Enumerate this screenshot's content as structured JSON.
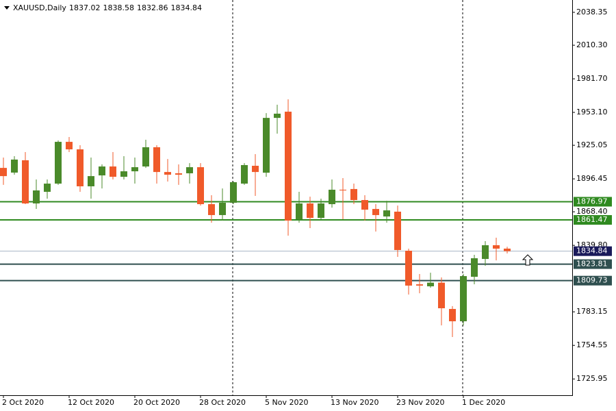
{
  "chart_data": {
    "type": "candlestick",
    "title": "XAUUSD,Daily",
    "categories": [
      "2 Oct 2020",
      null,
      null,
      null,
      null,
      null,
      "12 Oct 2020",
      null,
      null,
      null,
      null,
      null,
      "20 Oct 2020",
      null,
      null,
      null,
      null,
      null,
      "28 Oct 2020",
      null,
      null,
      null,
      null,
      null,
      "5 Nov 2020",
      null,
      null,
      null,
      null,
      null,
      "13 Nov 2020",
      null,
      null,
      null,
      null,
      null,
      "23 Nov 2020",
      null,
      null,
      null,
      null,
      null,
      "1 Dec 2020",
      null,
      null,
      null,
      null
    ],
    "open": [
      1905.8,
      1901.8,
      1912.3,
      1875.5,
      1885.4,
      1892.4,
      1928.0,
      1921.6,
      1890.1,
      1899.4,
      1907.0,
      1898.2,
      1902.9,
      1907.0,
      1923.4,
      1902.3,
      1901.2,
      1901.2,
      1906.4,
      1874.9,
      1865.6,
      1876.1,
      1892.4,
      1907.6,
      1901.7,
      1948.4,
      1953.7,
      1862.1,
      1875.5,
      1863.2,
      1874.9,
      1887.2,
      1887.8,
      1878.4,
      1870.8,
      1864.4,
      1868.5,
      1835.2,
      1806.6,
      1804.9,
      1808.0,
      1785.6,
      1775.1,
      1813.0,
      1828.2,
      1839.9,
      1837.02
    ],
    "high": [
      1914.6,
      1915.8,
      1919.3,
      1895.9,
      1895.9,
      1929.2,
      1932.1,
      1925.1,
      1914.6,
      1908.8,
      1919.3,
      1915.8,
      1914.6,
      1929.8,
      1925.1,
      1913.4,
      1908.8,
      1909.9,
      1909.9,
      1882.5,
      1888.3,
      1894.2,
      1909.9,
      1917.5,
      1952.5,
      1959.6,
      1964.2,
      1885.4,
      1881.3,
      1879.6,
      1895.9,
      1897.1,
      1892.4,
      1882.5,
      1874.9,
      1877.8,
      1873.7,
      1837.0,
      1815.4,
      1816.5,
      1812.5,
      1788.0,
      1815.4,
      1831.7,
      1843.4,
      1846.3,
      1838.58
    ],
    "low": [
      1891.3,
      1900.0,
      1874.9,
      1870.8,
      1879.6,
      1891.3,
      1919.3,
      1885.4,
      1879.6,
      1888.3,
      1895.9,
      1895.9,
      1892.4,
      1905.8,
      1892.4,
      1894.2,
      1891.3,
      1892.4,
      1873.7,
      1859.1,
      1860.9,
      1874.9,
      1891.3,
      1881.9,
      1898.2,
      1935.0,
      1848.1,
      1859.1,
      1854.5,
      1862.1,
      1871.9,
      1862.1,
      1874.9,
      1860.9,
      1851.6,
      1859.1,
      1830.0,
      1797.9,
      1799.0,
      1803.7,
      1771.6,
      1761.7,
      1771.6,
      1806.6,
      1822.4,
      1827.0,
      1832.86
    ],
    "close": [
      1898.8,
      1912.9,
      1875.5,
      1886.6,
      1892.4,
      1928.0,
      1921.6,
      1890.1,
      1898.8,
      1907.0,
      1898.2,
      1902.9,
      1906.4,
      1923.4,
      1902.3,
      1900.0,
      1900.0,
      1906.4,
      1874.9,
      1865.6,
      1876.1,
      1893.6,
      1908.2,
      1902.3,
      1948.4,
      1952.0,
      1860.9,
      1875.5,
      1863.2,
      1875.5,
      1887.2,
      1886.6,
      1878.4,
      1870.2,
      1865.6,
      1869.6,
      1835.8,
      1805.5,
      1805.5,
      1808.0,
      1786.2,
      1775.1,
      1813.6,
      1828.8,
      1839.9,
      1837.0,
      1834.84
    ],
    "up_color": "#4a8a2a",
    "down_color": "#f05a2a",
    "ylim": [
      1712.07,
      2048.86
    ],
    "yticks": [
      1725.95,
      1754.55,
      1783.15,
      {
        "value": 1839.8,
        "label": "1839.80"
      },
      {
        "value": 1868.4,
        "label": "1868.40"
      },
      1896.45,
      1925.05,
      {
        "value": 1953.1,
        "label": "1953.10"
      },
      {
        "value": 1981.7,
        "label": "1981.70"
      },
      {
        "value": 2010.3,
        "label": "2010.30"
      },
      2038.35
    ],
    "levels": [
      {
        "value": 1876.97,
        "color": "#2f8a20"
      },
      {
        "value": 1861.47,
        "color": "#2f8a20"
      },
      {
        "value": 1823.81,
        "color": "#2f4f4f"
      },
      {
        "value": 1809.73,
        "color": "#2f4f4f"
      }
    ],
    "current_color": "#1a1a5a"
  }
}
